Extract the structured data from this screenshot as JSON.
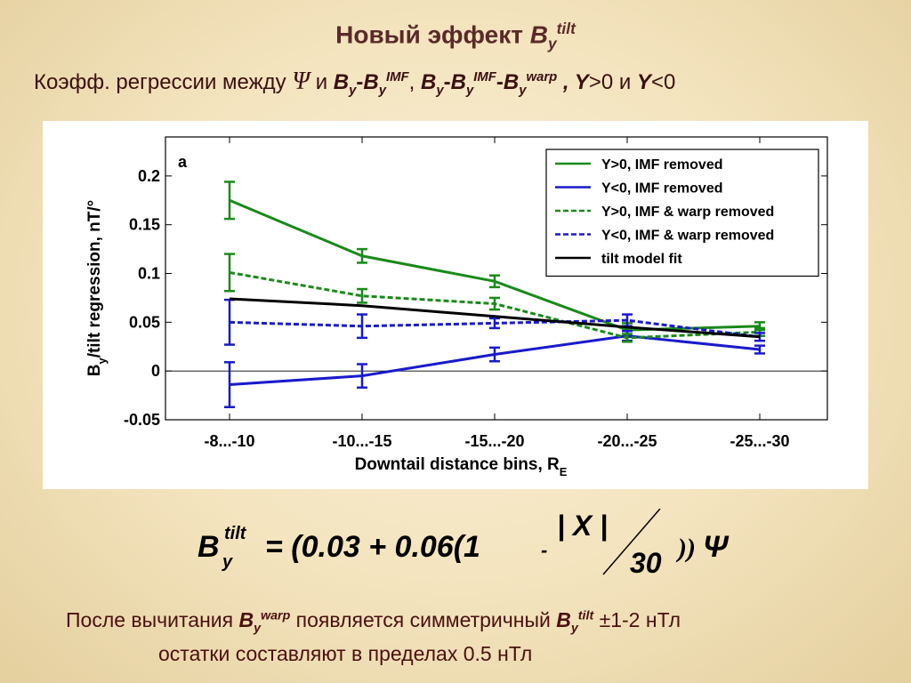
{
  "slide": {
    "title_prefix": "Новый эффект ",
    "title_B": "B",
    "title_sub": "y",
    "title_sup": "tilt",
    "subtitle_prefix": "Коэфф. регрессии между ",
    "subtitle_psi": "Ψ",
    "subtitle_and": " и ",
    "sub_term1": "B",
    "sub_y": "y",
    "sub_minus": "-",
    "sub_imf": "IMF",
    "sub_comma": ", ",
    "sub_warp": "warp",
    "sub_Y": "Y",
    "sub_gt0": ">0 и ",
    "sub_lt0": "<0",
    "footer_prefix": "После вычитания ",
    "footer_B": "B",
    "footer_y": "y",
    "footer_warp": "warp",
    "footer_mid": " появляется симметричный ",
    "footer_tilt": "tilt",
    "footer_suffix": " ±1-2 нТл",
    "footer_line2": "остатки составляют в пределах 0.5 нТл"
  },
  "formula": {
    "lhs_B": "B",
    "lhs_y": "y",
    "lhs_tilt": "tilt",
    "rhs_start": "= (0.03 + 0.06(1",
    "minus": "-",
    "numerator": "| X |",
    "denominator": "30",
    "close": "))",
    "psi": "Ψ"
  },
  "chart_data": {
    "type": "line",
    "panel_label": "a",
    "xlabel": "Downtail distance bins, R",
    "xlabel_sub": "E",
    "ylabel_main": "B",
    "ylabel_sub": "y",
    "ylabel_rest": "/tilt regression, nT/°",
    "categories": [
      "-8...-10",
      "-10...-15",
      "-15...-20",
      "-20...-25",
      "-25...-30"
    ],
    "ylim": [
      -0.05,
      0.24
    ],
    "yticks": [
      -0.05,
      0,
      0.05,
      0.1,
      0.15,
      0.2
    ],
    "ytick_labels": [
      "-0.05",
      "0",
      "0.05",
      "0.1",
      "0.15",
      "0.2"
    ],
    "legend_position": "top-right",
    "series": [
      {
        "name": "Y>0, IMF removed",
        "color": "#1a8a1a",
        "dash": "solid",
        "values": [
          0.175,
          0.118,
          0.092,
          0.042,
          0.046
        ],
        "errors": [
          0.019,
          0.007,
          0.006,
          0.007,
          0.004
        ]
      },
      {
        "name": "Y<0, IMF removed",
        "color": "#1a1acc",
        "dash": "solid",
        "values": [
          -0.014,
          -0.005,
          0.017,
          0.036,
          0.022
        ],
        "errors": [
          0.023,
          0.012,
          0.007,
          0.005,
          0.004
        ]
      },
      {
        "name": "Y>0, IMF & warp removed",
        "color": "#1a8a1a",
        "dash": "dashed",
        "values": [
          0.101,
          0.077,
          0.069,
          0.034,
          0.04
        ],
        "errors": [
          0.019,
          0.007,
          0.006,
          0.004,
          0.004
        ]
      },
      {
        "name": "Y<0, IMF & warp removed",
        "color": "#1a1acc",
        "dash": "dashed",
        "values": [
          0.05,
          0.046,
          0.049,
          0.052,
          0.035
        ],
        "errors": [
          0.023,
          0.012,
          0.005,
          0.006,
          0.004
        ]
      },
      {
        "name": "tilt model fit",
        "color": "#000000",
        "dash": "solid",
        "values": [
          0.074,
          0.067,
          0.056,
          0.045,
          0.035
        ],
        "errors": null
      }
    ]
  }
}
